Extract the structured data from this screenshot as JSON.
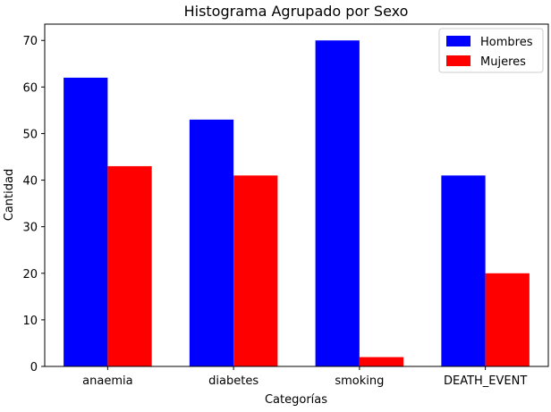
{
  "chart_data": {
    "type": "bar",
    "title": "Histograma Agrupado por Sexo",
    "xlabel": "Categorías",
    "ylabel": "Cantidad",
    "categories": [
      "anaemia",
      "diabetes",
      "smoking",
      "DEATH_EVENT"
    ],
    "series": [
      {
        "name": "Hombres",
        "color": "#0000ff",
        "values": [
          62,
          53,
          70,
          41
        ]
      },
      {
        "name": "Mujeres",
        "color": "#ff0000",
        "values": [
          43,
          41,
          2,
          20
        ]
      }
    ],
    "ylim": [
      0,
      73.5
    ],
    "yticks": [
      0,
      10,
      20,
      30,
      40,
      50,
      60,
      70
    ],
    "grid": false,
    "legend_position": "top-right"
  }
}
